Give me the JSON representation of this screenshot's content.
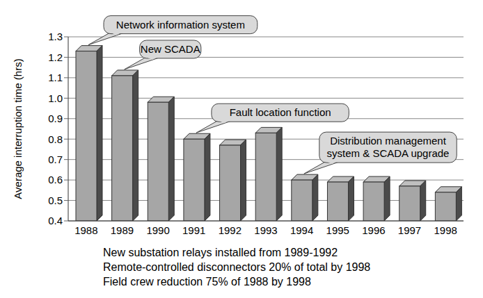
{
  "chart_data": {
    "type": "bar",
    "y_label": "Average interruption time (hrs)",
    "categories": [
      "1988",
      "1989",
      "1990",
      "1991",
      "1992",
      "1993",
      "1994",
      "1995",
      "1996",
      "1997",
      "1998"
    ],
    "values": [
      1.23,
      1.11,
      0.98,
      0.8,
      0.77,
      0.83,
      0.6,
      0.59,
      0.59,
      0.57,
      0.54
    ],
    "color": "#a6a6a6",
    "ylim": [
      0.4,
      1.3
    ],
    "yticks": [
      0.4,
      0.5,
      0.6,
      0.7,
      0.8,
      0.9,
      {
        "value": 1,
        "label": "1.0"
      },
      1.1,
      1.2,
      1.3
    ],
    "grid": true,
    "annotations": [
      {
        "category": "1988",
        "text": "Network information system"
      },
      {
        "category": "1989",
        "text": "New SCADA"
      },
      {
        "category": "1991",
        "text": "Fault location function"
      },
      {
        "category": "1994",
        "text": "Distribution management system & SCADA upgrade"
      }
    ],
    "notes": [
      "New substation relays installed from 1989-1992",
      "Remote-controlled disconnectors 20% of total by 1998",
      "Field crew reduction 75% of 1988 by 1998"
    ]
  }
}
